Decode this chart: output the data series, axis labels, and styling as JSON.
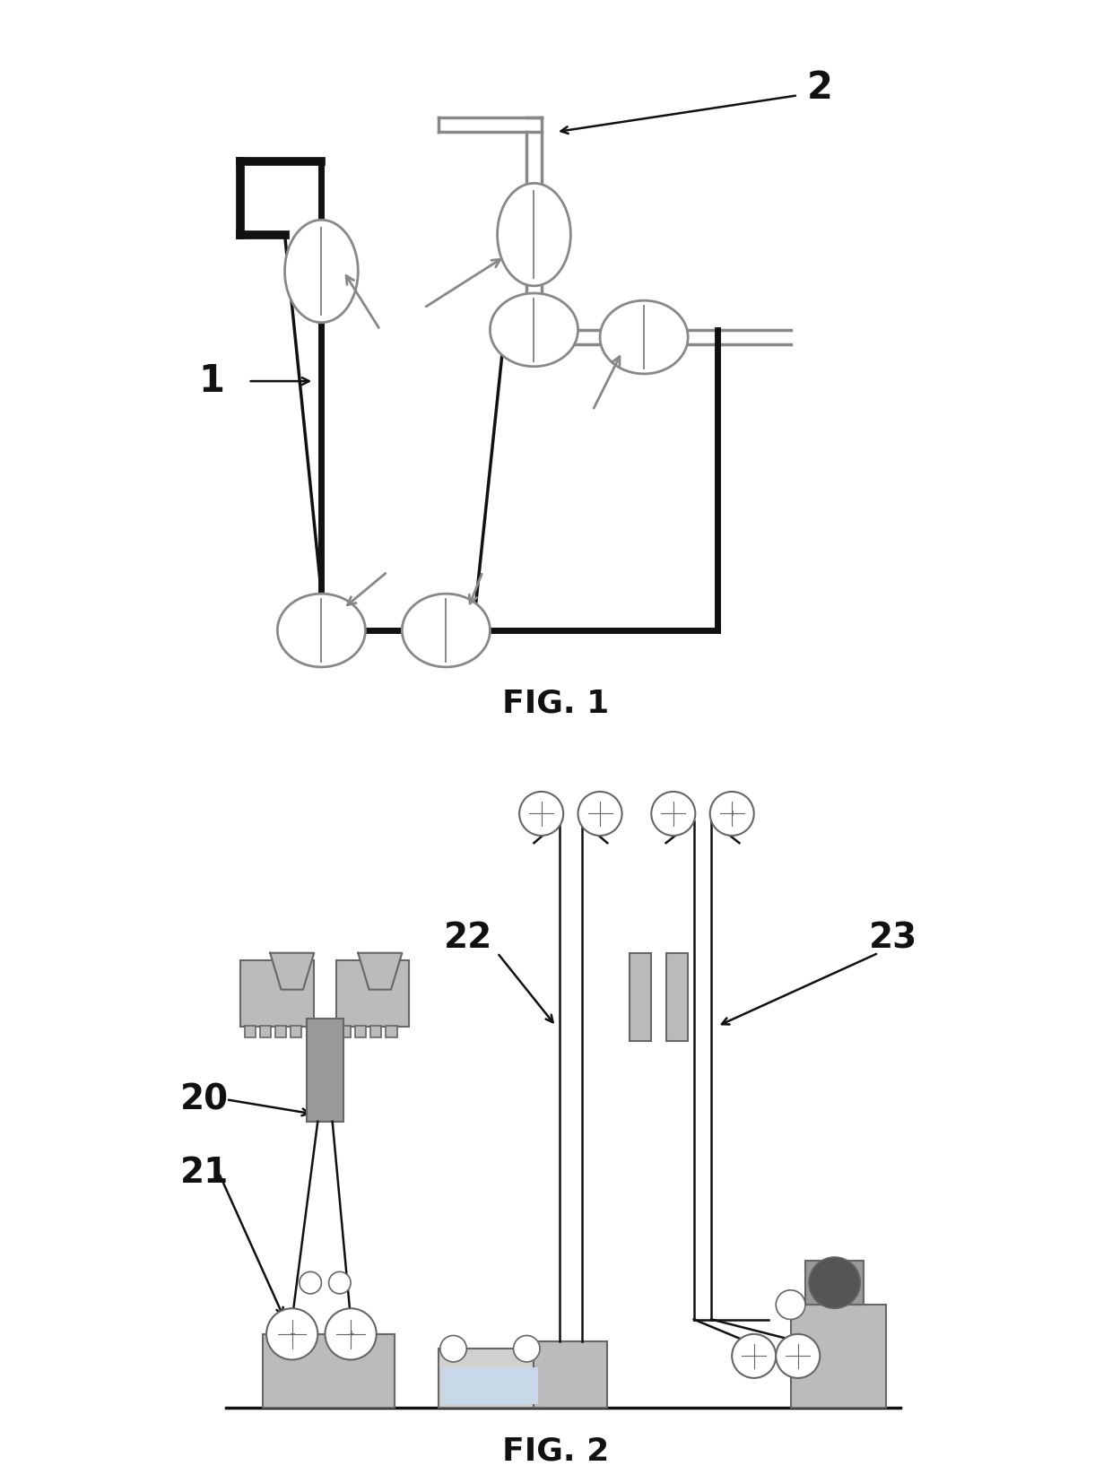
{
  "bg": "#ffffff",
  "black": "#111111",
  "gray": "#888888",
  "lgray": "#bbbbbb",
  "dgray": "#666666",
  "fig1_caption": "FIG. 1",
  "fig2_caption": "FIG. 2",
  "lbl_1": "1",
  "lbl_2": "2",
  "lbl_20": "20",
  "lbl_21": "21",
  "lbl_22": "22",
  "lbl_23": "23"
}
